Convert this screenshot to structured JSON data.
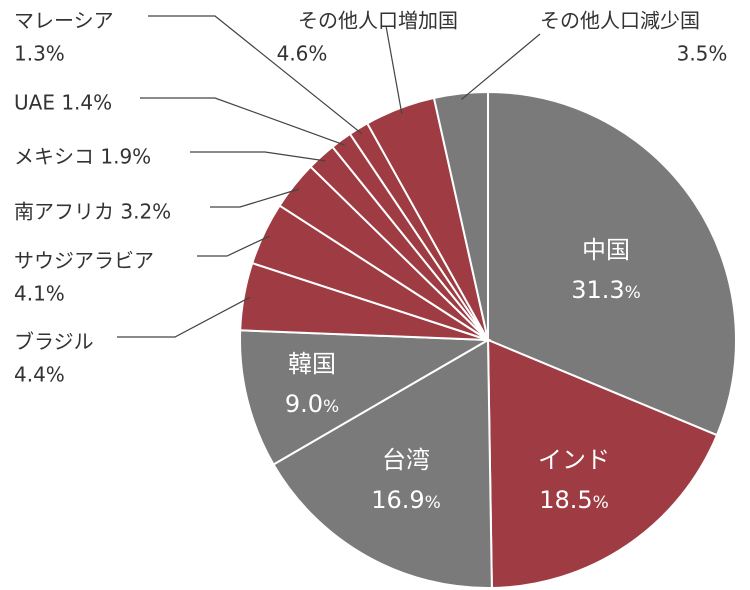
{
  "chart_data": {
    "type": "pie",
    "title": "",
    "colors": {
      "red": "#9e3b43",
      "gray": "#7a7a7a"
    },
    "slices": [
      {
        "label": "中国",
        "value": 31.3,
        "value_text": "31.3",
        "unit": "%",
        "color": "gray",
        "label_style": "inside"
      },
      {
        "label": "インド",
        "value": 18.5,
        "value_text": "18.5",
        "unit": "%",
        "color": "red",
        "label_style": "inside"
      },
      {
        "label": "台湾",
        "value": 16.9,
        "value_text": "16.9",
        "unit": "%",
        "color": "gray",
        "label_style": "inside"
      },
      {
        "label": "韓国",
        "value": 9.0,
        "value_text": "9.0",
        "unit": "%",
        "color": "gray",
        "label_style": "inside"
      },
      {
        "label": "ブラジル",
        "value": 4.4,
        "value_text": "4.4%",
        "color": "red",
        "label_style": "outside"
      },
      {
        "label": "サウジアラビア",
        "value": 4.1,
        "value_text": "4.1%",
        "color": "red",
        "label_style": "outside"
      },
      {
        "label": "南アフリカ",
        "value": 3.2,
        "value_text": "3.2%",
        "color": "red",
        "label_style": "outside"
      },
      {
        "label": "メキシコ",
        "value": 1.9,
        "value_text": "1.9%",
        "color": "red",
        "label_style": "outside"
      },
      {
        "label": "UAE",
        "value": 1.4,
        "value_text": "1.4%",
        "color": "red",
        "label_style": "outside"
      },
      {
        "label": "マレーシア",
        "value": 1.3,
        "value_text": "1.3%",
        "color": "red",
        "label_style": "outside"
      },
      {
        "label": "その他人口増加国",
        "value": 4.6,
        "value_text": "4.6%",
        "color": "red",
        "label_style": "outside"
      },
      {
        "label": "その他人口減少国",
        "value": 3.5,
        "value_text": "3.5%",
        "color": "gray",
        "label_style": "outside"
      }
    ]
  }
}
